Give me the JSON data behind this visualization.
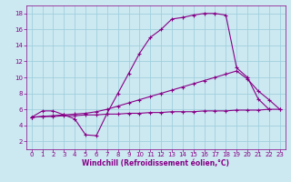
{
  "xlabel": "Windchill (Refroidissement éolien,°C)",
  "bg_color": "#cce8f0",
  "line_color": "#880088",
  "grid_color": "#99ccdd",
  "xlim": [
    -0.5,
    23.5
  ],
  "ylim": [
    1.0,
    19.0
  ],
  "xticks": [
    0,
    1,
    2,
    3,
    4,
    5,
    6,
    7,
    8,
    9,
    10,
    11,
    12,
    13,
    14,
    15,
    16,
    17,
    18,
    19,
    20,
    21,
    22,
    23
  ],
  "yticks": [
    2,
    4,
    6,
    8,
    10,
    12,
    14,
    16,
    18
  ],
  "curve1_x": [
    0,
    1,
    2,
    3,
    4,
    5,
    6,
    7,
    8,
    9,
    10,
    11,
    12,
    13,
    14,
    15,
    16,
    17,
    18,
    19,
    20,
    21,
    22
  ],
  "curve1_y": [
    5.0,
    5.8,
    5.8,
    5.3,
    4.8,
    2.8,
    2.7,
    5.5,
    8.0,
    10.5,
    13.0,
    15.0,
    16.0,
    17.3,
    17.5,
    17.8,
    18.0,
    18.0,
    17.8,
    11.2,
    10.0,
    7.3,
    6.0
  ],
  "curve2_x": [
    0,
    1,
    2,
    3,
    4,
    5,
    6,
    7,
    8,
    9,
    10,
    11,
    12,
    13,
    14,
    15,
    16,
    17,
    18,
    19,
    20,
    21,
    22,
    23
  ],
  "curve2_y": [
    5.0,
    5.1,
    5.2,
    5.3,
    5.4,
    5.5,
    5.7,
    6.0,
    6.4,
    6.8,
    7.2,
    7.6,
    8.0,
    8.4,
    8.8,
    9.2,
    9.6,
    10.0,
    10.4,
    10.8,
    9.8,
    8.3,
    7.2,
    6.0
  ],
  "curve3_x": [
    0,
    1,
    2,
    3,
    4,
    5,
    6,
    7,
    8,
    9,
    10,
    11,
    12,
    13,
    14,
    15,
    16,
    17,
    18,
    19,
    20,
    21,
    22,
    23
  ],
  "curve3_y": [
    5.0,
    5.1,
    5.1,
    5.2,
    5.2,
    5.3,
    5.3,
    5.4,
    5.4,
    5.5,
    5.5,
    5.6,
    5.6,
    5.7,
    5.7,
    5.7,
    5.8,
    5.8,
    5.8,
    5.9,
    5.9,
    5.9,
    6.0,
    6.0
  ]
}
